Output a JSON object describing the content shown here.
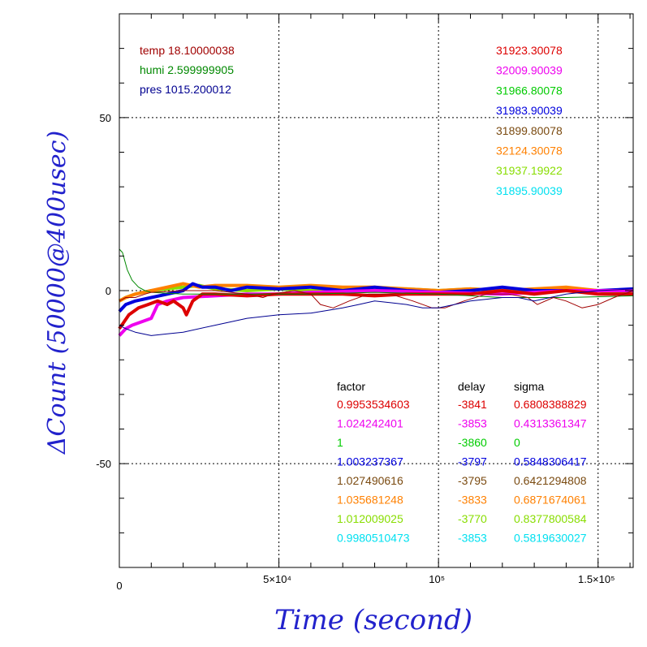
{
  "chart_data": {
    "type": "line",
    "xlabel": "Time (second)",
    "ylabel": "ΔCount (50000@400usec)",
    "xlim": [
      0,
      161000
    ],
    "ylim": [
      -80,
      80
    ],
    "grid": true,
    "x_ticks": [
      {
        "value": 0,
        "label": "0"
      },
      {
        "value": 50000,
        "label": "5×10⁴"
      },
      {
        "value": 100000,
        "label": "10⁵"
      },
      {
        "value": 150000,
        "label": "1.5×10⁵"
      }
    ],
    "y_ticks": [
      {
        "value": 50,
        "label": "50"
      },
      {
        "value": 0,
        "label": "0"
      },
      {
        "value": -50,
        "label": "-50"
      }
    ],
    "env_labels": [
      {
        "text": "temp 18.10000038",
        "color": "#a00000"
      },
      {
        "text": "humi 2.599999905",
        "color": "#008800"
      },
      {
        "text": "pres 1015.200012",
        "color": "#000090"
      }
    ],
    "count_labels": [
      {
        "text": "31923.30078",
        "color": "#dd0000"
      },
      {
        "text": "32009.90039",
        "color": "#ee00ee"
      },
      {
        "text": "31966.80078",
        "color": "#00cc00"
      },
      {
        "text": "31983.90039",
        "color": "#0000dd"
      },
      {
        "text": "31899.80078",
        "color": "#7a4a10"
      },
      {
        "text": "32124.30078",
        "color": "#ff8000"
      },
      {
        "text": "31937.19922",
        "color": "#88dd00"
      },
      {
        "text": "31895.90039",
        "color": "#00e0f0"
      }
    ],
    "table": {
      "headers": [
        "factor",
        "delay",
        "sigma"
      ],
      "rows": [
        {
          "factor": "0.9953534603",
          "delay": "-3841",
          "sigma": "0.6808388829",
          "color": "#dd0000"
        },
        {
          "factor": "1.024242401",
          "delay": "-3853",
          "sigma": "0.4313361347",
          "color": "#ee00ee"
        },
        {
          "factor": "1",
          "delay": "-3860",
          "sigma": "0",
          "color": "#00cc00"
        },
        {
          "factor": "1.003237367",
          "delay": "-3797",
          "sigma": "0.5848306417",
          "color": "#0000dd"
        },
        {
          "factor": "1.027490616",
          "delay": "-3795",
          "sigma": "0.6421294808",
          "color": "#7a4a10"
        },
        {
          "factor": "1.035681248",
          "delay": "-3833",
          "sigma": "0.6871674061",
          "color": "#ff8000"
        },
        {
          "factor": "1.012009025",
          "delay": "-3770",
          "sigma": "0.8377800584",
          "color": "#88dd00"
        },
        {
          "factor": "0.9980510473",
          "delay": "-3853",
          "sigma": "0.5819630027",
          "color": "#00e0f0"
        }
      ]
    },
    "series": [
      {
        "color": "#88dd00",
        "width": 4,
        "points": [
          [
            0,
            -3
          ],
          [
            2000,
            -2
          ],
          [
            5000,
            -1
          ],
          [
            10000,
            0
          ],
          [
            15000,
            0.5
          ],
          [
            20000,
            1
          ],
          [
            25000,
            1.5
          ],
          [
            30000,
            0.5
          ],
          [
            40000,
            0
          ],
          [
            50000,
            0.5
          ],
          [
            60000,
            0
          ],
          [
            70000,
            0.5
          ],
          [
            80000,
            0
          ],
          [
            90000,
            0.5
          ],
          [
            100000,
            0
          ],
          [
            110000,
            0.5
          ],
          [
            120000,
            0
          ],
          [
            130000,
            0
          ],
          [
            140000,
            0.5
          ],
          [
            150000,
            0
          ],
          [
            161000,
            -1
          ]
        ]
      },
      {
        "color": "#ff8000",
        "width": 4,
        "points": [
          [
            0,
            -3
          ],
          [
            2000,
            -2
          ],
          [
            5000,
            -1
          ],
          [
            10000,
            0
          ],
          [
            15000,
            1
          ],
          [
            20000,
            2
          ],
          [
            25000,
            1
          ],
          [
            30000,
            1.5
          ],
          [
            40000,
            1.5
          ],
          [
            50000,
            1
          ],
          [
            60000,
            1.5
          ],
          [
            70000,
            1
          ],
          [
            80000,
            1
          ],
          [
            90000,
            0.5
          ],
          [
            100000,
            0
          ],
          [
            110000,
            0.5
          ],
          [
            120000,
            0
          ],
          [
            130000,
            0.5
          ],
          [
            140000,
            1
          ],
          [
            150000,
            0
          ],
          [
            161000,
            0
          ]
        ]
      },
      {
        "color": "#0000dd",
        "width": 4,
        "points": [
          [
            0,
            -6
          ],
          [
            2000,
            -4
          ],
          [
            5000,
            -3
          ],
          [
            10000,
            -2
          ],
          [
            15000,
            -1
          ],
          [
            20000,
            0
          ],
          [
            23000,
            2
          ],
          [
            26000,
            1
          ],
          [
            30000,
            1
          ],
          [
            35000,
            0
          ],
          [
            40000,
            1
          ],
          [
            50000,
            0.5
          ],
          [
            60000,
            1
          ],
          [
            70000,
            0
          ],
          [
            80000,
            1
          ],
          [
            90000,
            0
          ],
          [
            100000,
            -0.5
          ],
          [
            110000,
            0
          ],
          [
            120000,
            1
          ],
          [
            130000,
            0
          ],
          [
            140000,
            0
          ],
          [
            150000,
            0
          ],
          [
            161000,
            0.5
          ]
        ]
      },
      {
        "color": "#ee00ee",
        "width": 4,
        "points": [
          [
            0,
            -13
          ],
          [
            2000,
            -11
          ],
          [
            4000,
            -10
          ],
          [
            7000,
            -9
          ],
          [
            10000,
            -8
          ],
          [
            12000,
            -4
          ],
          [
            15000,
            -3
          ],
          [
            20000,
            -2
          ],
          [
            30000,
            -1.5
          ],
          [
            40000,
            -1
          ],
          [
            50000,
            -1
          ],
          [
            60000,
            -0.5
          ],
          [
            80000,
            0
          ],
          [
            100000,
            -0.5
          ],
          [
            120000,
            -1
          ],
          [
            140000,
            0
          ],
          [
            161000,
            0
          ]
        ]
      },
      {
        "color": "#dd0000",
        "width": 4,
        "points": [
          [
            0,
            -11
          ],
          [
            1500,
            -9
          ],
          [
            3000,
            -7
          ],
          [
            6000,
            -5
          ],
          [
            9000,
            -4
          ],
          [
            12000,
            -3
          ],
          [
            15000,
            -4
          ],
          [
            17000,
            -3
          ],
          [
            20000,
            -5
          ],
          [
            21000,
            -7
          ],
          [
            23000,
            -3
          ],
          [
            26000,
            -1
          ],
          [
            30000,
            -1
          ],
          [
            40000,
            -1.5
          ],
          [
            50000,
            -1
          ],
          [
            60000,
            -1
          ],
          [
            70000,
            -1
          ],
          [
            80000,
            -1.5
          ],
          [
            90000,
            -1
          ],
          [
            100000,
            -1
          ],
          [
            110000,
            -1
          ],
          [
            120000,
            0
          ],
          [
            130000,
            -1
          ],
          [
            140000,
            0
          ],
          [
            150000,
            -1
          ],
          [
            161000,
            -1
          ]
        ]
      },
      {
        "color": "#008800",
        "width": 1,
        "points": [
          [
            0,
            12
          ],
          [
            1000,
            11
          ],
          [
            2500,
            6
          ],
          [
            4000,
            3
          ],
          [
            6000,
            1
          ],
          [
            8000,
            0
          ],
          [
            10000,
            -0.5
          ],
          [
            20000,
            -1
          ],
          [
            40000,
            -1
          ],
          [
            60000,
            -1
          ],
          [
            80000,
            -0.5
          ],
          [
            100000,
            -1
          ],
          [
            120000,
            -2
          ],
          [
            140000,
            -2
          ],
          [
            161000,
            -1.5
          ]
        ]
      },
      {
        "color": "#a00000",
        "width": 1,
        "points": [
          [
            0,
            -3
          ],
          [
            2000,
            -2
          ],
          [
            5000,
            -2
          ],
          [
            8000,
            -1
          ],
          [
            10000,
            -0.5
          ],
          [
            20000,
            0
          ],
          [
            30000,
            0
          ],
          [
            40000,
            -1
          ],
          [
            45000,
            -2
          ],
          [
            48000,
            -1
          ],
          [
            55000,
            0
          ],
          [
            60000,
            -1
          ],
          [
            63000,
            -4
          ],
          [
            67000,
            -5
          ],
          [
            72000,
            -3
          ],
          [
            78000,
            -1
          ],
          [
            85000,
            -1
          ],
          [
            92000,
            -3
          ],
          [
            98000,
            -5
          ],
          [
            102000,
            -5
          ],
          [
            108000,
            -3
          ],
          [
            115000,
            -1
          ],
          [
            122000,
            -1
          ],
          [
            128000,
            -2
          ],
          [
            131000,
            -4
          ],
          [
            136000,
            -2
          ],
          [
            140000,
            -3
          ],
          [
            145000,
            -5
          ],
          [
            150000,
            -4
          ],
          [
            155000,
            -2
          ],
          [
            161000,
            0
          ]
        ]
      },
      {
        "color": "#000090",
        "width": 1,
        "points": [
          [
            0,
            -10
          ],
          [
            2000,
            -11
          ],
          [
            5000,
            -12
          ],
          [
            10000,
            -13
          ],
          [
            15000,
            -12.5
          ],
          [
            20000,
            -12
          ],
          [
            30000,
            -10
          ],
          [
            40000,
            -8
          ],
          [
            50000,
            -7
          ],
          [
            60000,
            -6.5
          ],
          [
            70000,
            -5
          ],
          [
            75000,
            -4
          ],
          [
            80000,
            -3
          ],
          [
            85000,
            -3.5
          ],
          [
            90000,
            -4
          ],
          [
            95000,
            -5
          ],
          [
            100000,
            -5
          ],
          [
            105000,
            -4
          ],
          [
            110000,
            -3
          ],
          [
            120000,
            -2
          ],
          [
            125000,
            -2
          ],
          [
            130000,
            -3
          ],
          [
            135000,
            -2
          ],
          [
            140000,
            -1
          ],
          [
            150000,
            0
          ],
          [
            161000,
            0.5
          ]
        ]
      }
    ]
  }
}
